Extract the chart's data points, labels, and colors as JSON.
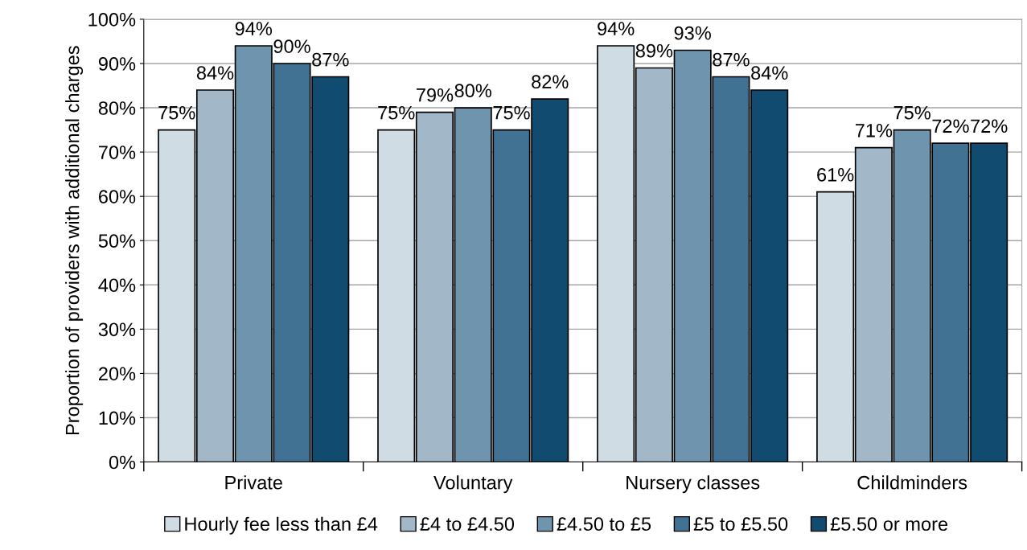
{
  "chart_data": {
    "type": "bar",
    "ylabel": "Proportion of providers with additional charges",
    "categories": [
      "Private",
      "Voluntary",
      "Nursery classes",
      "Childminders"
    ],
    "series": [
      {
        "name": "Hourly fee less than £4",
        "color": "#d0dce4",
        "values": [
          75,
          75,
          94,
          61
        ],
        "value_labels": [
          "75%",
          "75%",
          "94%",
          "61%"
        ]
      },
      {
        "name": "£4 to £4.50",
        "color": "#a2b8c9",
        "values": [
          84,
          79,
          89,
          71
        ],
        "value_labels": [
          "84%",
          "79%",
          "89%",
          "71%"
        ]
      },
      {
        "name": "£4.50 to £5",
        "color": "#6f94ae",
        "values": [
          94,
          80,
          93,
          75
        ],
        "value_labels": [
          "94%",
          "80%",
          "93%",
          "75%"
        ]
      },
      {
        "name": "£5 to £5.50",
        "color": "#417193",
        "values": [
          90,
          75,
          87,
          72
        ],
        "value_labels": [
          "90%",
          "75%",
          "87%",
          "72%"
        ]
      },
      {
        "name": "£5.50 or more",
        "color": "#124b70",
        "values": [
          87,
          82,
          84,
          72
        ],
        "value_labels": [
          "87%",
          "82%",
          "84%",
          "72%"
        ]
      }
    ],
    "ylim": [
      0,
      100
    ],
    "yticks": [
      {
        "value": 0,
        "label": "0%"
      },
      {
        "value": 10,
        "label": "10%"
      },
      {
        "value": 20,
        "label": "20%"
      },
      {
        "value": 30,
        "label": "30%"
      },
      {
        "value": 40,
        "label": "40%"
      },
      {
        "value": 50,
        "label": "50%"
      },
      {
        "value": 60,
        "label": "60%"
      },
      {
        "value": 70,
        "label": "70%"
      },
      {
        "value": 80,
        "label": "80%"
      },
      {
        "value": 90,
        "label": "90%"
      },
      {
        "value": 100,
        "label": "100%"
      }
    ],
    "grid": "y",
    "legend": "bottom"
  }
}
